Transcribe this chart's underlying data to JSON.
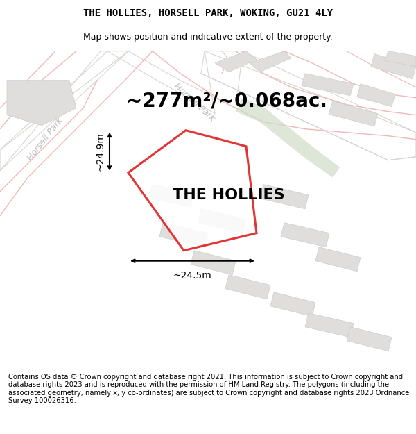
{
  "title": "THE HOLLIES, HORSELL PARK, WOKING, GU21 4LY",
  "subtitle": "Map shows position and indicative extent of the property.",
  "area_label": "~277m²/~0.068ac.",
  "property_label": "THE HOLLIES",
  "dim_width": "~24.5m",
  "dim_height": "~24.9m",
  "footer": "Contains OS data © Crown copyright and database right 2021. This information is subject to Crown copyright and database rights 2023 and is reproduced with the permission of HM Land Registry. The polygons (including the associated geometry, namely x, y co-ordinates) are subject to Crown copyright and database rights 2023 Ordnance Survey 100026316.",
  "bg_color": "#f8f7f5",
  "building_color": "#e0dedd",
  "building_edge": "#cccccc",
  "red_outline": "#dd1111",
  "green_band": "#d0dcc8",
  "road_line_color": "#f0b8b8",
  "road_gray_color": "#d8d5d0",
  "title_fontsize": 10,
  "subtitle_fontsize": 9,
  "area_fontsize": 20,
  "property_label_fontsize": 16,
  "footer_fontsize": 7.2,
  "dim_fontsize": 10,
  "road_label_fontsize": 9
}
